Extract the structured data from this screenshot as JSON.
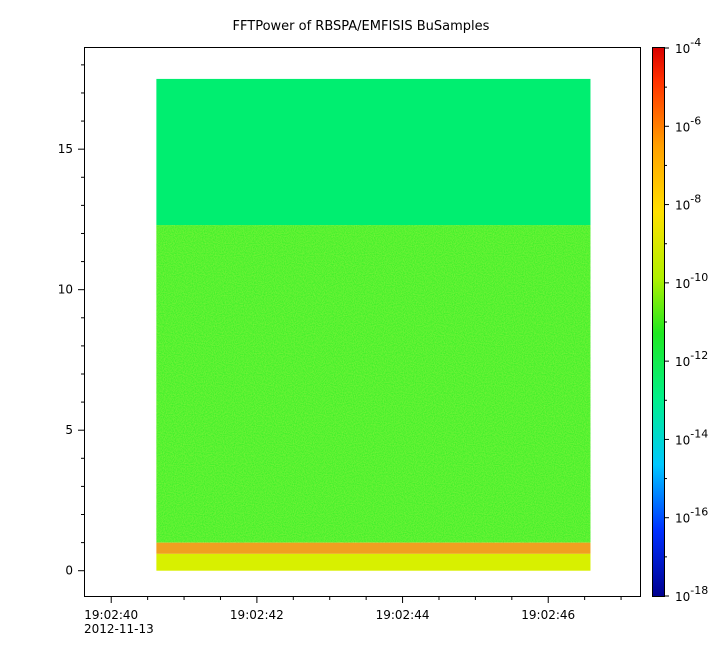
{
  "chart_data": {
    "type": "heatmap",
    "title": "FFTPower of RBSPA/EMFISIS  BuSamples",
    "xlabel": "",
    "ylabel": "",
    "x_ticks": [
      "19:02:40",
      "19:02:42",
      "19:02:44",
      "19:02:46"
    ],
    "x_tick_sublabel": "2012-11-13",
    "x_range": [
      "19:02:39.64",
      "19:02:47.26"
    ],
    "data_time_range": [
      "19:02:40.62",
      "19:02:46.58"
    ],
    "y_ticks": [
      0,
      5,
      10,
      15
    ],
    "ylim": [
      -0.9,
      18.6
    ],
    "data_y_range": [
      0,
      17.5
    ],
    "colorbar": {
      "scale": "log",
      "range": [
        1e-18,
        0.0001
      ],
      "tick_labels": [
        "10",
        "10",
        "10",
        "10",
        "10",
        "10",
        "10",
        "10"
      ],
      "tick_exponents": [
        "-18",
        "-16",
        "-14",
        "-12",
        "-10",
        "-8",
        "-6",
        "-4"
      ]
    },
    "bands": [
      {
        "y_range": [
          12.3,
          17.5
        ],
        "level": "~1e-12"
      },
      {
        "y_range": [
          1.0,
          12.3
        ],
        "level": "~1e-10"
      },
      {
        "y_range": [
          0.6,
          1.0
        ],
        "level": "~1e-7 to 1e-6"
      },
      {
        "y_range": [
          0,
          0.6
        ],
        "level": "~1e-9"
      }
    ],
    "grid": false
  }
}
